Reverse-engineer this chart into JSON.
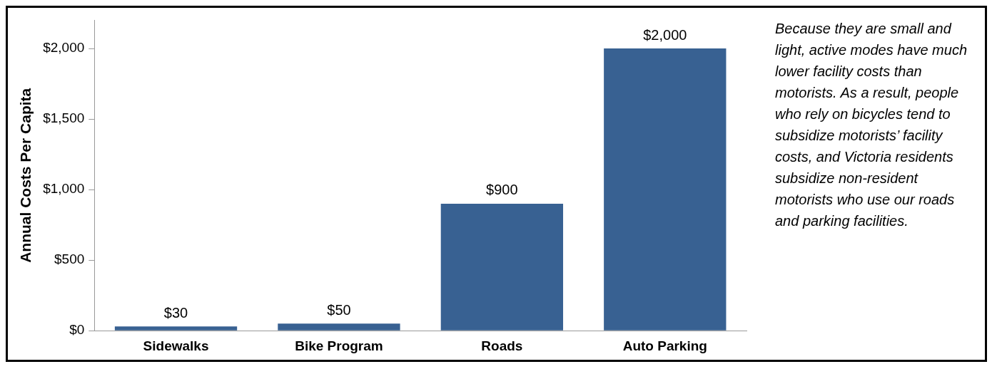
{
  "chart_data": {
    "type": "bar",
    "categories": [
      "Sidewalks",
      "Bike Program",
      "Roads",
      "Auto Parking"
    ],
    "values": [
      30,
      50,
      900,
      2000
    ],
    "color": "#386192",
    "ylabel": "Annual Costs Per Capita",
    "ylim": [
      0,
      2200
    ],
    "yticks": [
      {
        "value": 0,
        "label": "$0"
      },
      {
        "value": 500,
        "label": "$500"
      },
      {
        "value": 1000,
        "label": "$1,000"
      },
      {
        "value": 1500,
        "label": "$1,500"
      },
      {
        "value": 2000,
        "label": "$2,000"
      }
    ],
    "value_labels": [
      "$30",
      "$50",
      "$900",
      "$2,000"
    ],
    "grid": false,
    "legend": false,
    "annotations": [
      "Because they are small and light, active modes have much lower facility costs than motorists. As a result, people who rely on bicycles tend to subsidize motorists’ facility costs, and Victoria residents subsidize non-resident motorists who use our roads and parking facilities."
    ]
  }
}
